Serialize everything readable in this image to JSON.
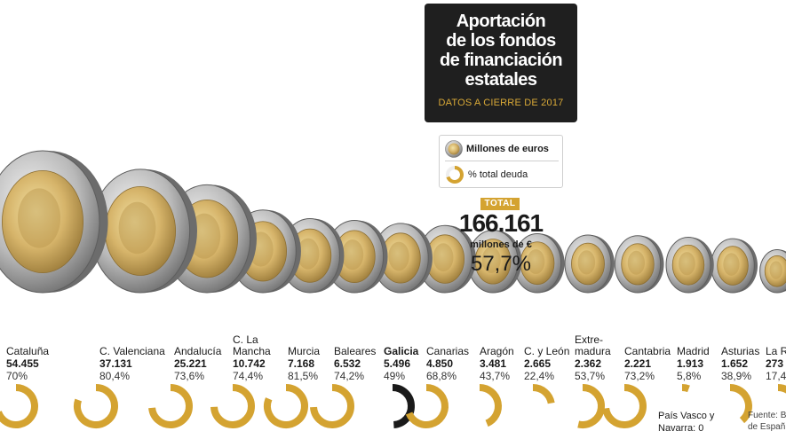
{
  "title": [
    "Aportación",
    "de los fondos",
    "de financiación",
    "estatales"
  ],
  "subtitle": "DATOS A CIERRE DE 2017",
  "legend": {
    "coin_label": "Millones de euros",
    "ring_label": "% total deuda"
  },
  "total": {
    "badge": "TOTAL",
    "value": "166.161",
    "unit": "millones de €",
    "pct": "57,7%"
  },
  "footnote": [
    "País Vasco y",
    "Navarra: 0"
  ],
  "source": [
    "Fuente: B",
    "de Españ"
  ],
  "colors": {
    "gold": "#d4a331",
    "highlight": "#1a1a1a",
    "box": "#1f1f1f"
  },
  "chart_data": {
    "type": "bar",
    "categories": [
      "Cataluña",
      "C. Valenciana",
      "Andalucía",
      "C. La Mancha",
      "Murcia",
      "Baleares",
      "Galicia",
      "Canarias",
      "Aragón",
      "C. y León",
      "Extremadura",
      "Cantabria",
      "Madrid",
      "Asturias",
      "La R"
    ],
    "labels": [
      [
        "Cataluña"
      ],
      [
        "C. Valenciana"
      ],
      [
        "Andalucía"
      ],
      [
        "C. La",
        "Mancha"
      ],
      [
        "Murcia"
      ],
      [
        "Baleares"
      ],
      [
        "Galicia"
      ],
      [
        "Canarias"
      ],
      [
        "Aragón"
      ],
      [
        "C. y León"
      ],
      [
        "Extre-",
        "madura"
      ],
      [
        "Cantabria"
      ],
      [
        "Madrid"
      ],
      [
        "Asturias"
      ],
      [
        "La R"
      ]
    ],
    "value_labels": [
      "54.455",
      "37.131",
      "25.221",
      "10.742",
      "7.168",
      "6.532",
      "5.496",
      "4.850",
      "3.481",
      "2.665",
      "2.362",
      "2.221",
      "1.913",
      "1.652",
      "273"
    ],
    "pct_labels": [
      "70%",
      "80,4%",
      "73,6%",
      "74,4%",
      "81,5%",
      "74,2%",
      "49%",
      "68,8%",
      "43,7%",
      "22,4%",
      "53,7%",
      "73,2%",
      "5,8%",
      "38,9%",
      "17,4"
    ],
    "series": [
      {
        "name": "Millones de euros",
        "values": [
          54455,
          37131,
          25221,
          10742,
          7168,
          6532,
          5496,
          4850,
          3481,
          2665,
          2362,
          2221,
          1913,
          1652,
          273
        ]
      },
      {
        "name": "% total deuda",
        "values": [
          70,
          80.4,
          73.6,
          74.4,
          81.5,
          74.2,
          49,
          68.8,
          43.7,
          22.4,
          53.7,
          73.2,
          5.8,
          38.9,
          17.4
        ]
      }
    ],
    "highlight": "Galicia"
  }
}
